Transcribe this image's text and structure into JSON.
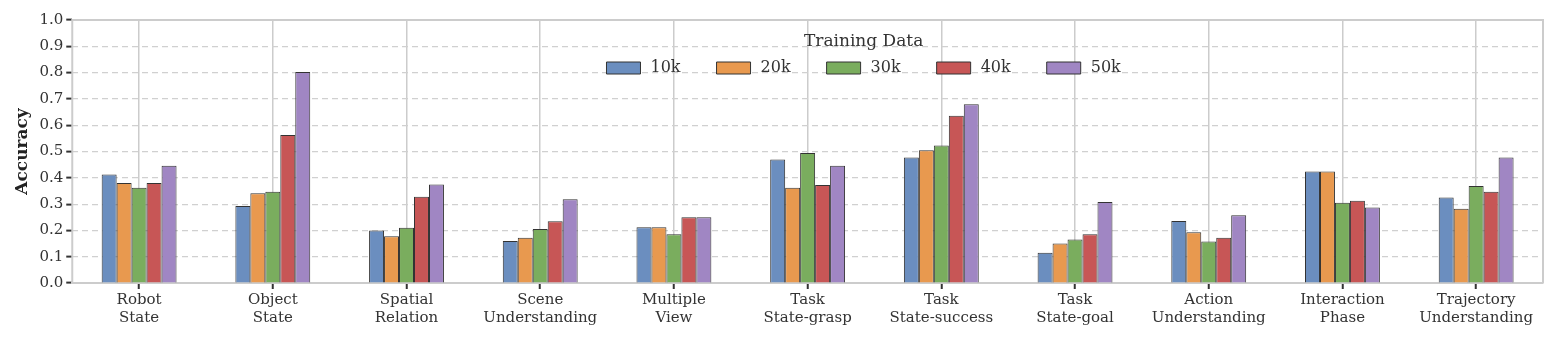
{
  "chart_data": {
    "type": "bar",
    "ylabel": "Accuracy",
    "legend_title": "Training Data",
    "legend": "top",
    "grid": true,
    "categories": [
      "Robot\nState",
      "Object\nState",
      "Spatial\nRelation",
      "Scene\nUnderstanding",
      "Multiple\nView",
      "Task\nState-grasp",
      "Task\nState-success",
      "Task\nState-goal",
      "Action\nUnderstanding",
      "Interaction\nPhase",
      "Trajectory\nUnderstanding"
    ],
    "ylim": [
      0,
      1
    ],
    "yticks": [
      {
        "value": 0,
        "label": "0.0"
      },
      0.1,
      0.2,
      0.3,
      0.4,
      0.5,
      0.6,
      0.7,
      0.8,
      0.9,
      {
        "value": 1,
        "label": "1.0"
      }
    ],
    "series": [
      {
        "name": "10k",
        "color": "#6b8ebf",
        "values": [
          0.413,
          0.293,
          0.2,
          0.16,
          0.212,
          0.47,
          0.477,
          0.115,
          0.236,
          0.424,
          0.325
        ]
      },
      {
        "name": "20k",
        "color": "#e8994f",
        "values": [
          0.38,
          0.341,
          0.178,
          0.172,
          0.212,
          0.362,
          0.505,
          0.15,
          0.193,
          0.424,
          0.282
        ]
      },
      {
        "name": "30k",
        "color": "#7aad5e",
        "values": [
          0.362,
          0.347,
          0.21,
          0.205,
          0.185,
          0.494,
          0.523,
          0.165,
          0.158,
          0.305,
          0.369
        ]
      },
      {
        "name": "40k",
        "color": "#c75656",
        "values": [
          0.38,
          0.563,
          0.328,
          0.235,
          0.25,
          0.373,
          0.636,
          0.185,
          0.172,
          0.313,
          0.347
        ]
      },
      {
        "name": "50k",
        "color": "#a086c3",
        "values": [
          0.446,
          0.802,
          0.375,
          0.318,
          0.25,
          0.446,
          0.68,
          0.308,
          0.258,
          0.287,
          0.477
        ]
      }
    ]
  }
}
